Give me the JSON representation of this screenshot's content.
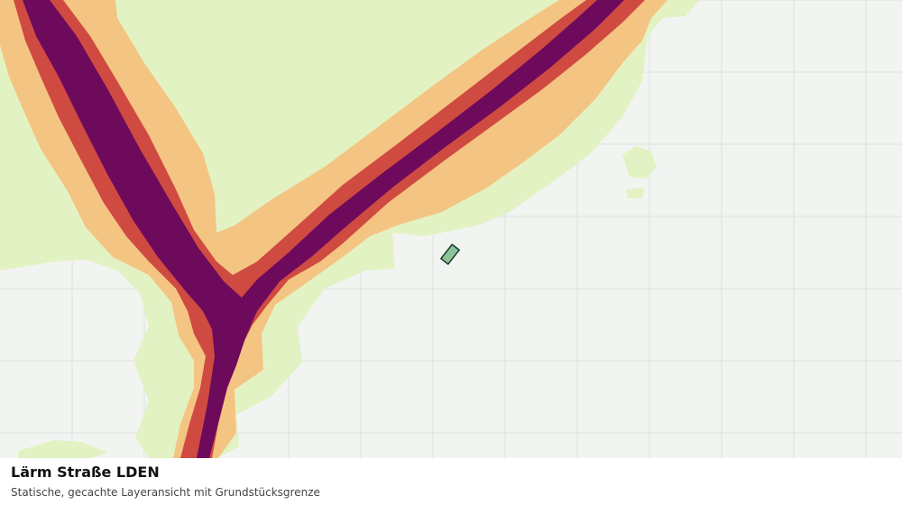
{
  "caption": {
    "title": "Lärm Straße LDEN",
    "subtitle": "Statische, gecachte Layeransicht mit Grundstücksgrenze"
  },
  "map": {
    "layer": "Lärm Straße LDEN",
    "background_color": "#f2f4f2",
    "grid_color": "#dde1dd",
    "noise_bands": [
      {
        "level": 1,
        "color": "#e3f2c2"
      },
      {
        "level": 2,
        "color": "#f4c482"
      },
      {
        "level": 3,
        "color": "#cf4a41"
      },
      {
        "level": 4,
        "color": "#6e0a5c"
      }
    ],
    "parcel": {
      "fill": "#8cc49a",
      "stroke": "#1b3a28"
    }
  }
}
